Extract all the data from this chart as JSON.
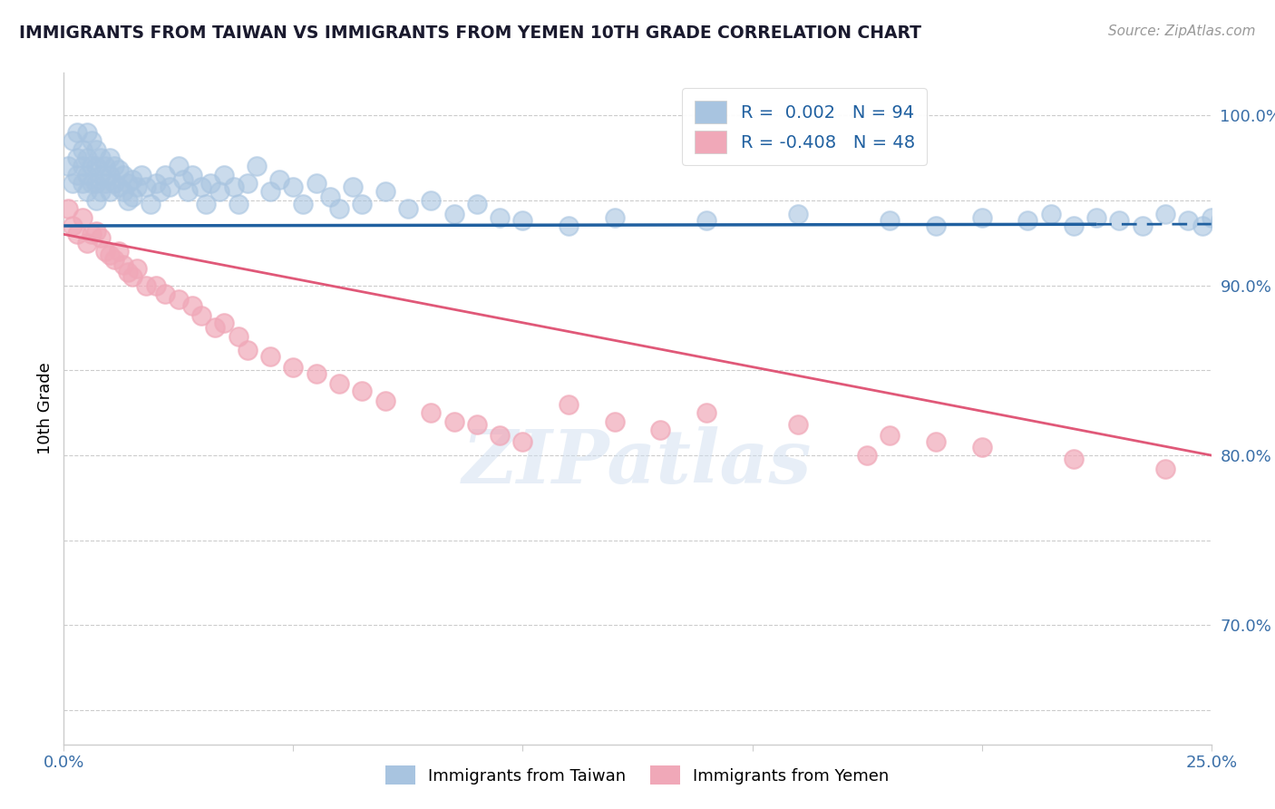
{
  "title": "IMMIGRANTS FROM TAIWAN VS IMMIGRANTS FROM YEMEN 10TH GRADE CORRELATION CHART",
  "source": "Source: ZipAtlas.com",
  "ylabel": "10th Grade",
  "x_min": 0.0,
  "x_max": 0.25,
  "y_min": 0.63,
  "y_max": 1.025,
  "taiwan_color": "#a8c4e0",
  "taiwan_color_line": "#2060a0",
  "yemen_color": "#f0a8b8",
  "yemen_color_line": "#e05878",
  "taiwan_R": 0.002,
  "taiwan_N": 94,
  "yemen_R": -0.408,
  "yemen_N": 48,
  "taiwan_intercept": 0.935,
  "taiwan_slope": 0.004,
  "yemen_intercept": 0.93,
  "yemen_slope": -0.52,
  "watermark": "ZIPatlas",
  "legend_taiwan_label": "Immigrants from Taiwan",
  "legend_yemen_label": "Immigrants from Yemen",
  "grid_color": "#cccccc",
  "background_color": "#ffffff",
  "taiwan_x": [
    0.001,
    0.002,
    0.002,
    0.003,
    0.003,
    0.003,
    0.004,
    0.004,
    0.004,
    0.005,
    0.005,
    0.005,
    0.005,
    0.006,
    0.006,
    0.006,
    0.007,
    0.007,
    0.007,
    0.007,
    0.008,
    0.008,
    0.008,
    0.009,
    0.009,
    0.01,
    0.01,
    0.01,
    0.011,
    0.011,
    0.012,
    0.012,
    0.013,
    0.013,
    0.014,
    0.014,
    0.015,
    0.015,
    0.016,
    0.017,
    0.018,
    0.019,
    0.02,
    0.021,
    0.022,
    0.023,
    0.025,
    0.026,
    0.027,
    0.028,
    0.03,
    0.031,
    0.032,
    0.034,
    0.035,
    0.037,
    0.038,
    0.04,
    0.042,
    0.045,
    0.047,
    0.05,
    0.052,
    0.055,
    0.058,
    0.06,
    0.063,
    0.065,
    0.07,
    0.075,
    0.08,
    0.085,
    0.09,
    0.095,
    0.1,
    0.11,
    0.12,
    0.14,
    0.16,
    0.18,
    0.19,
    0.2,
    0.21,
    0.215,
    0.22,
    0.225,
    0.23,
    0.235,
    0.24,
    0.245,
    0.248,
    0.25,
    0.252,
    0.255
  ],
  "taiwan_y": [
    0.97,
    0.985,
    0.96,
    0.99,
    0.975,
    0.965,
    0.98,
    0.97,
    0.96,
    0.99,
    0.975,
    0.965,
    0.955,
    0.985,
    0.97,
    0.96,
    0.98,
    0.97,
    0.96,
    0.95,
    0.975,
    0.965,
    0.955,
    0.97,
    0.96,
    0.975,
    0.965,
    0.955,
    0.97,
    0.96,
    0.968,
    0.958,
    0.965,
    0.955,
    0.96,
    0.95,
    0.962,
    0.952,
    0.958,
    0.965,
    0.958,
    0.948,
    0.96,
    0.955,
    0.965,
    0.958,
    0.97,
    0.962,
    0.955,
    0.965,
    0.958,
    0.948,
    0.96,
    0.955,
    0.965,
    0.958,
    0.948,
    0.96,
    0.97,
    0.955,
    0.962,
    0.958,
    0.948,
    0.96,
    0.952,
    0.945,
    0.958,
    0.948,
    0.955,
    0.945,
    0.95,
    0.942,
    0.948,
    0.94,
    0.938,
    0.935,
    0.94,
    0.938,
    0.942,
    0.938,
    0.935,
    0.94,
    0.938,
    0.942,
    0.935,
    0.94,
    0.938,
    0.935,
    0.942,
    0.938,
    0.935,
    0.94,
    0.938,
    0.935
  ],
  "yemen_x": [
    0.001,
    0.002,
    0.003,
    0.004,
    0.005,
    0.006,
    0.007,
    0.008,
    0.009,
    0.01,
    0.011,
    0.012,
    0.013,
    0.014,
    0.015,
    0.016,
    0.018,
    0.02,
    0.022,
    0.025,
    0.028,
    0.03,
    0.033,
    0.035,
    0.038,
    0.04,
    0.045,
    0.05,
    0.055,
    0.06,
    0.065,
    0.07,
    0.08,
    0.085,
    0.09,
    0.095,
    0.1,
    0.11,
    0.12,
    0.13,
    0.14,
    0.16,
    0.175,
    0.18,
    0.19,
    0.2,
    0.22,
    0.24
  ],
  "yemen_y": [
    0.945,
    0.935,
    0.93,
    0.94,
    0.925,
    0.93,
    0.932,
    0.928,
    0.92,
    0.918,
    0.915,
    0.92,
    0.912,
    0.908,
    0.905,
    0.91,
    0.9,
    0.9,
    0.895,
    0.892,
    0.888,
    0.882,
    0.875,
    0.878,
    0.87,
    0.862,
    0.858,
    0.852,
    0.848,
    0.842,
    0.838,
    0.832,
    0.825,
    0.82,
    0.818,
    0.812,
    0.808,
    0.83,
    0.82,
    0.815,
    0.825,
    0.818,
    0.8,
    0.812,
    0.808,
    0.805,
    0.798,
    0.792
  ]
}
